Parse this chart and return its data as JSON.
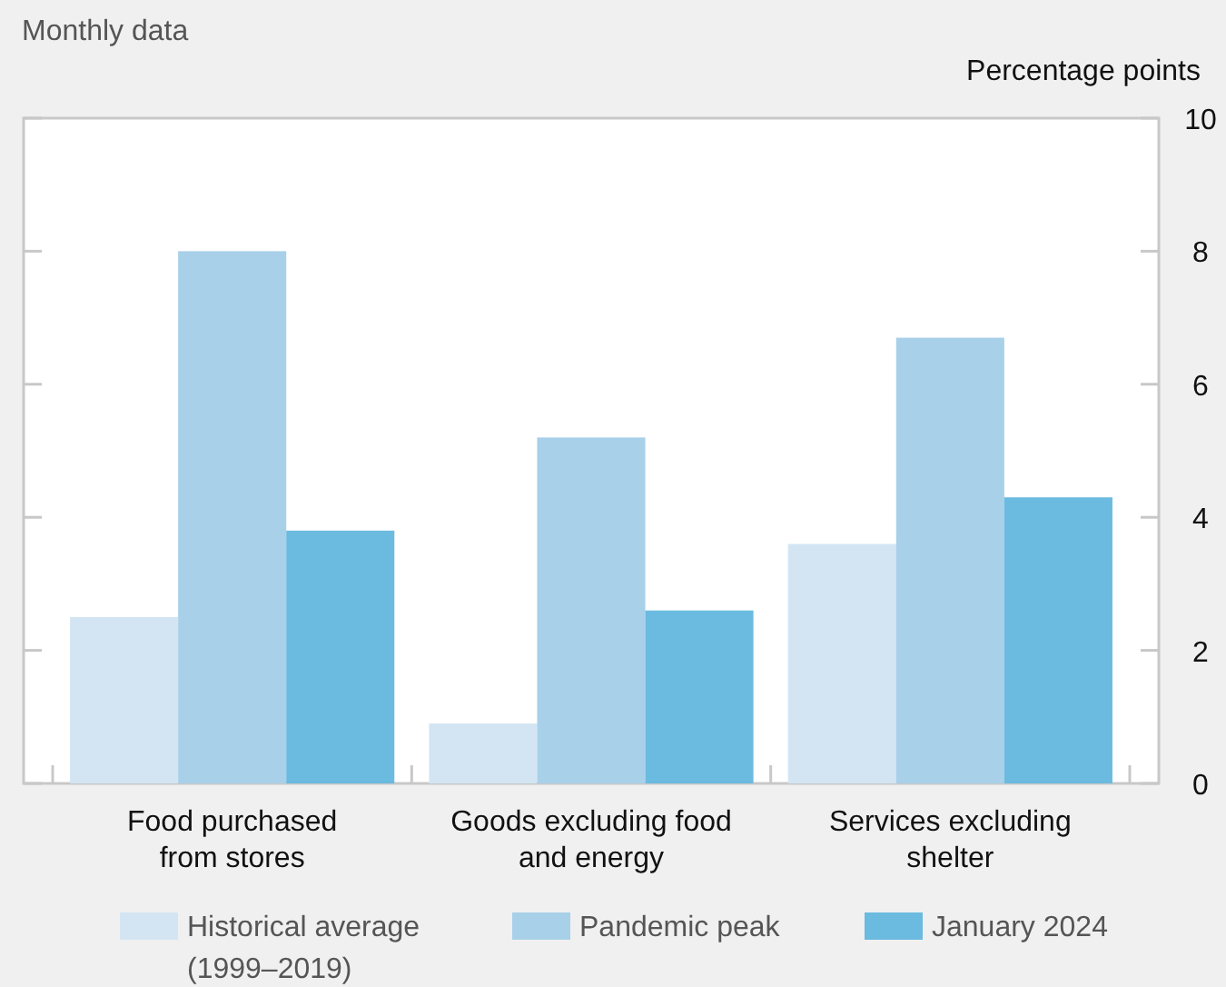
{
  "chart_data": {
    "type": "bar",
    "title": "Monthly data",
    "ylabel": "Percentage points",
    "categories": [
      "Food purchased\nfrom stores",
      "Goods excluding food\nand energy",
      "Services excluding\nshelter"
    ],
    "series": [
      {
        "name": "Historical average\n(1999–2019)",
        "color": "#d3e5f3",
        "values": [
          2.5,
          0.9,
          3.6
        ]
      },
      {
        "name": "Pandemic peak",
        "color": "#a8d0e9",
        "values": [
          8.0,
          5.2,
          6.7
        ]
      },
      {
        "name": "January 2024",
        "color": "#6bbadf",
        "values": [
          3.8,
          2.6,
          4.3
        ]
      }
    ],
    "ylim": [
      0,
      10
    ],
    "yticks": [
      0,
      2,
      4,
      6,
      8,
      10
    ],
    "grid": false,
    "legend": "bottom"
  }
}
